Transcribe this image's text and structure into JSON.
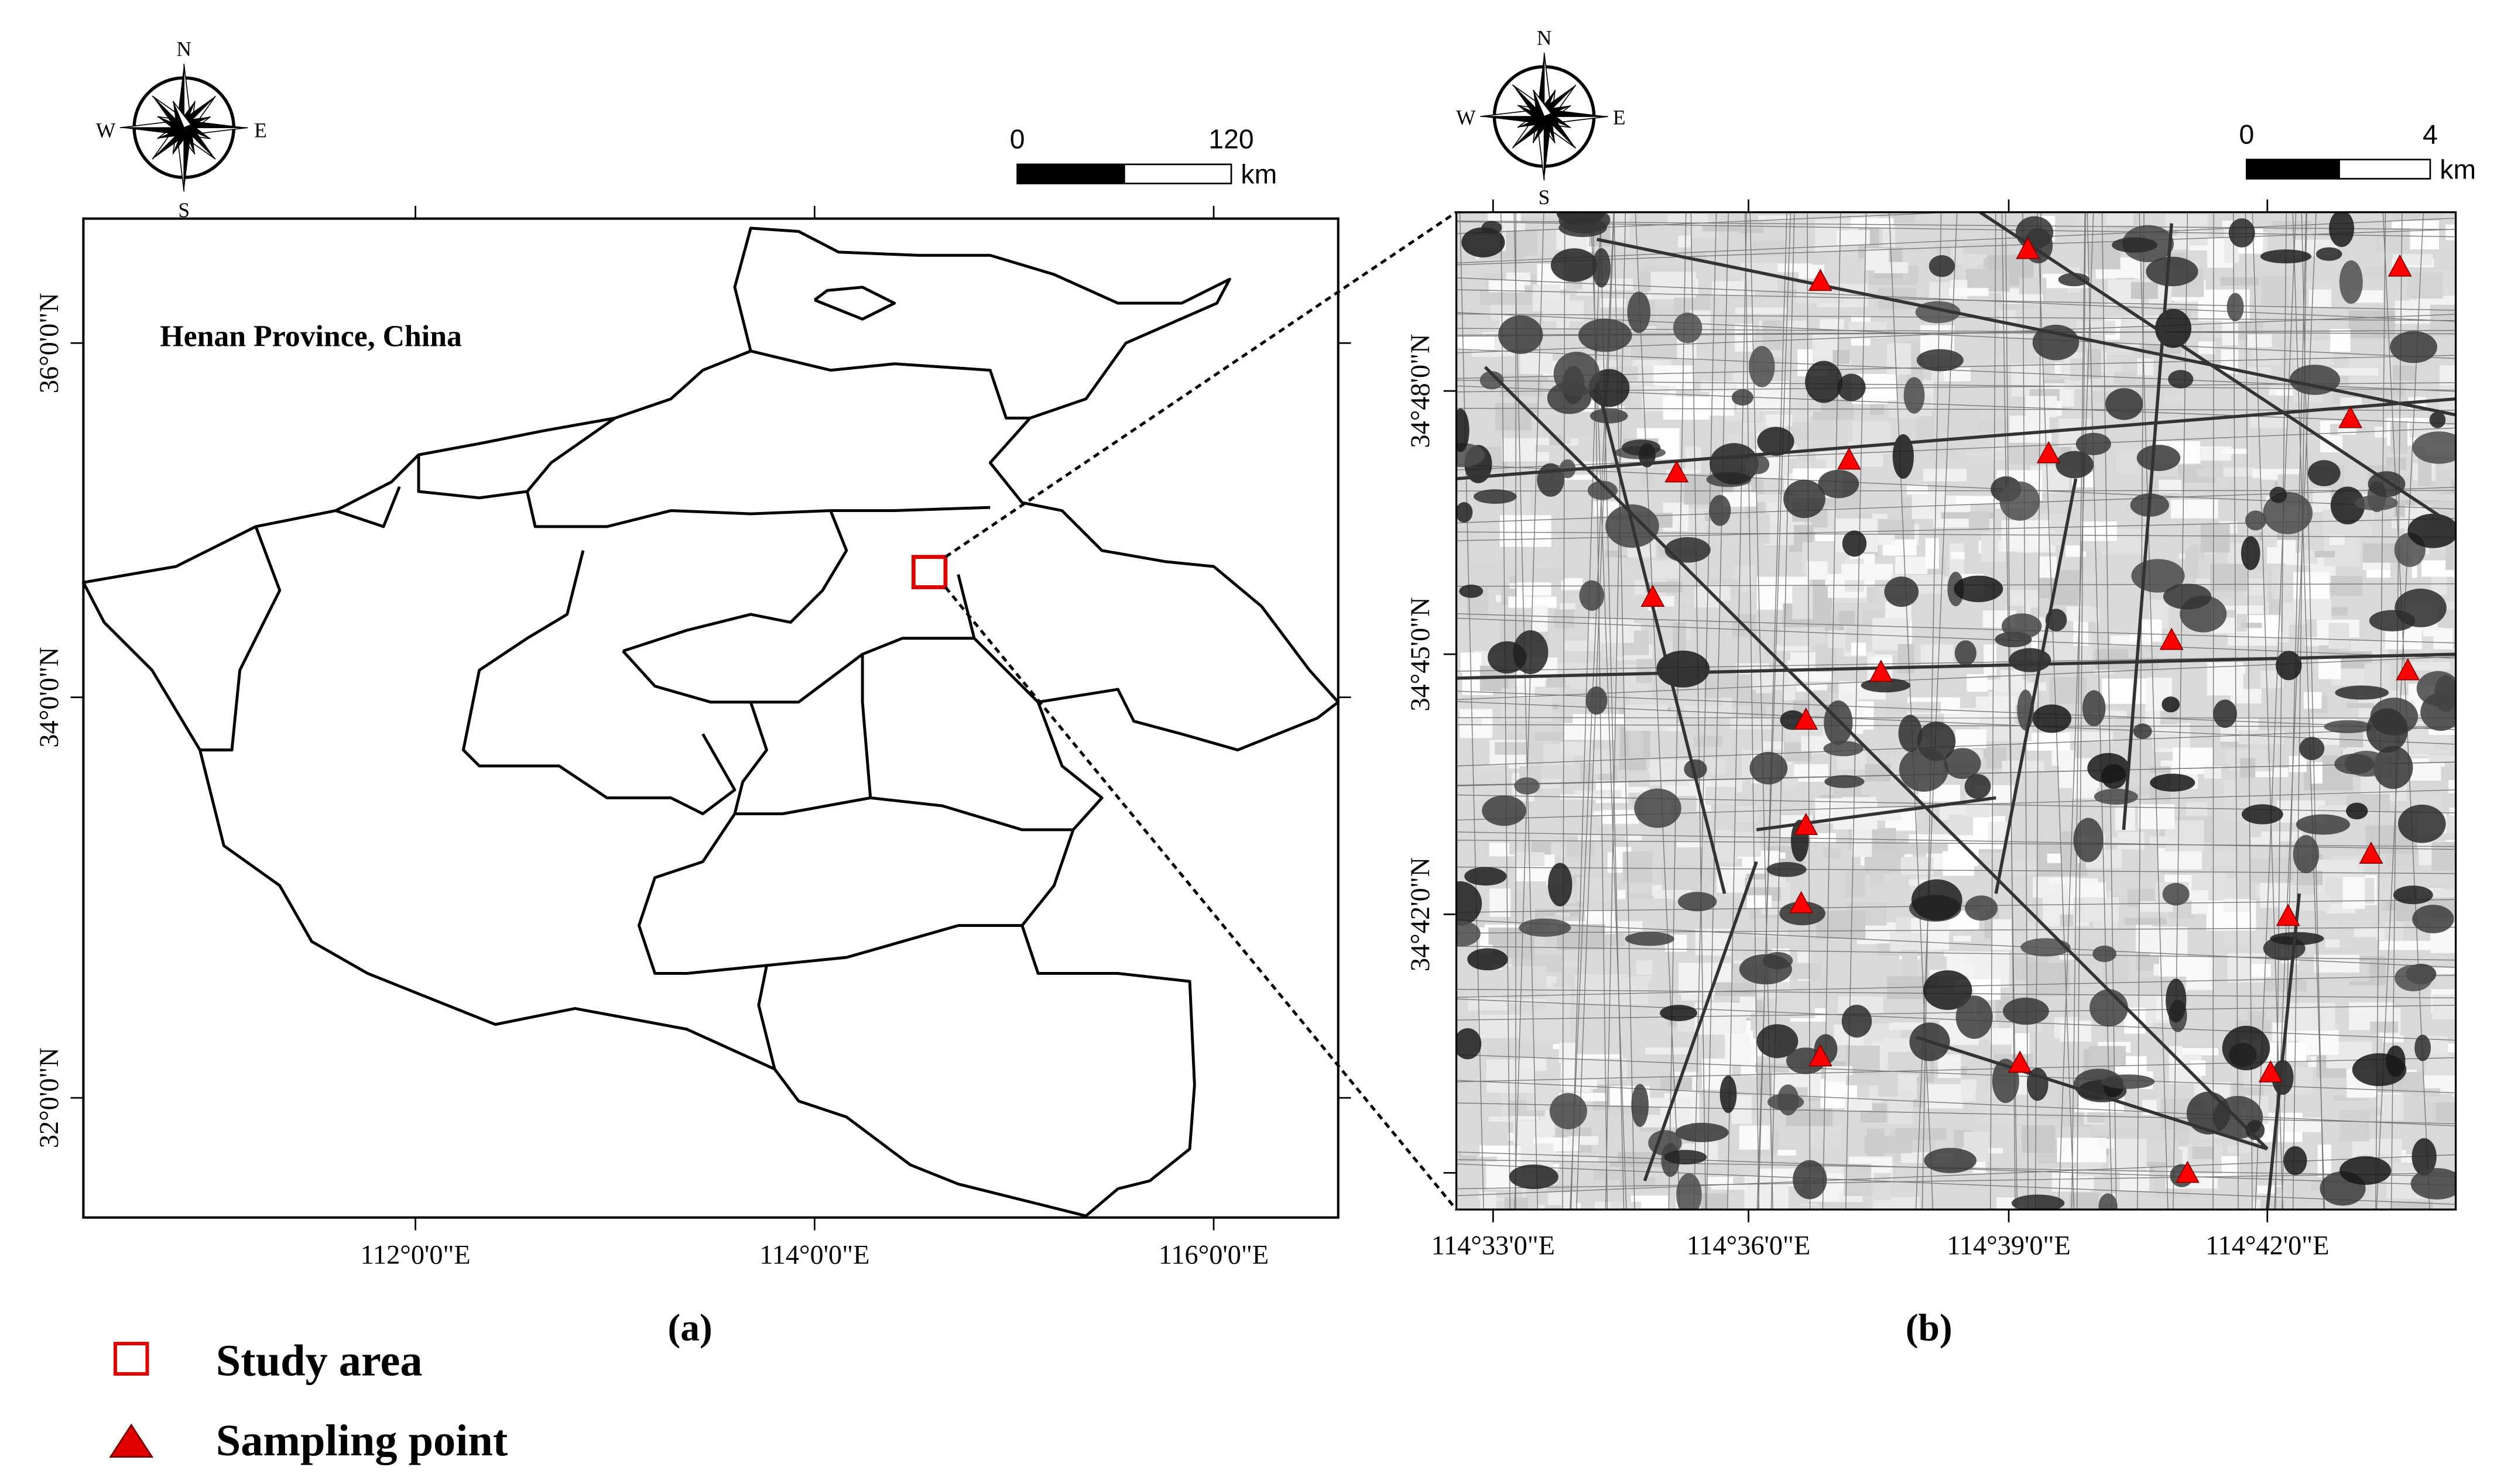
{
  "panel_a": {
    "title": "Henan Province, China",
    "compass": {
      "n": "N",
      "s": "S",
      "e": "E",
      "w": "W"
    },
    "scale": {
      "start": "0",
      "end": "120",
      "unit": "km"
    },
    "lat_labels": [
      "36°0'0\"N",
      "34°0'0\"N",
      "32°0'0\"N"
    ],
    "lon_labels": [
      "112°0'0\"E",
      "114°0'0\"E",
      "116°0'0\"E"
    ],
    "caption": "(a)"
  },
  "panel_b": {
    "compass": {
      "n": "N",
      "s": "S",
      "e": "E",
      "w": "W"
    },
    "scale": {
      "start": "0",
      "end": "4",
      "unit": "km"
    },
    "lat_labels": [
      "34°48'0\"N",
      "34°45'0\"N",
      "34°42'0\"N"
    ],
    "lon_labels": [
      "114°33'0\"E",
      "114°36'0\"E",
      "114°39'0\"E",
      "114°42'0\"E"
    ],
    "caption": "(b)"
  },
  "legend": {
    "items": [
      "Study area",
      "Sampling point"
    ]
  }
}
